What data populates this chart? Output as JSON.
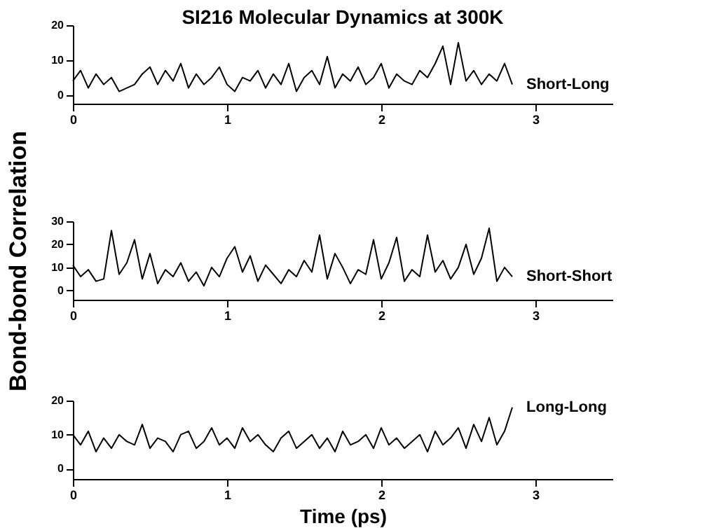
{
  "chart_data": [
    {
      "type": "line",
      "title": "SI216 Molecular Dynamics at 300K",
      "x": [
        0,
        0.05,
        0.1,
        0.15,
        0.2,
        0.25,
        0.3,
        0.35,
        0.4,
        0.45,
        0.5,
        0.55,
        0.6,
        0.65,
        0.7,
        0.75,
        0.8,
        0.85,
        0.9,
        0.95,
        1,
        1.05,
        1.1,
        1.15,
        1.2,
        1.25,
        1.3,
        1.35,
        1.4,
        1.45,
        1.5,
        1.55,
        1.6,
        1.65,
        1.7,
        1.75,
        1.8,
        1.85,
        1.9,
        1.95,
        2,
        2.05,
        2.1,
        2.15,
        2.2,
        2.25,
        2.3,
        2.35,
        2.4,
        2.45,
        2.5,
        2.55,
        2.6,
        2.65,
        2.7,
        2.75,
        2.8,
        2.85
      ],
      "xlim": [
        0,
        3.5
      ],
      "xticks": [
        0,
        1,
        2,
        3
      ],
      "ylim": [
        -2.5,
        20
      ],
      "yticks": [
        0,
        10,
        20
      ],
      "series": [
        {
          "name": "Short-Long",
          "color": "#000000",
          "values": [
            4,
            7,
            2,
            6,
            3,
            5,
            1,
            2,
            3,
            6,
            8,
            3,
            7,
            4,
            9,
            2,
            6,
            3,
            5,
            8,
            3,
            1,
            5,
            4,
            7,
            2,
            6,
            3,
            9,
            1,
            5,
            7,
            3,
            11,
            2,
            6,
            4,
            8,
            3,
            5,
            9,
            2,
            6,
            4,
            3,
            7,
            5,
            9,
            14,
            3,
            15,
            4,
            7,
            3,
            6,
            4,
            9,
            3
          ]
        }
      ]
    },
    {
      "type": "line",
      "ylabel": "Bond-bond Correlation",
      "x": [
        0,
        0.05,
        0.1,
        0.15,
        0.2,
        0.25,
        0.3,
        0.35,
        0.4,
        0.45,
        0.5,
        0.55,
        0.6,
        0.65,
        0.7,
        0.75,
        0.8,
        0.85,
        0.9,
        0.95,
        1,
        1.05,
        1.1,
        1.15,
        1.2,
        1.25,
        1.3,
        1.35,
        1.4,
        1.45,
        1.5,
        1.55,
        1.6,
        1.65,
        1.7,
        1.75,
        1.8,
        1.85,
        1.9,
        1.95,
        2,
        2.05,
        2.1,
        2.15,
        2.2,
        2.25,
        2.3,
        2.35,
        2.4,
        2.45,
        2.5,
        2.55,
        2.6,
        2.65,
        2.7,
        2.75,
        2.8,
        2.85
      ],
      "xlim": [
        0,
        3.5
      ],
      "xticks": [
        0,
        1,
        2,
        3
      ],
      "ylim": [
        -4,
        30
      ],
      "yticks": [
        0,
        10,
        20,
        30
      ],
      "series": [
        {
          "name": "Short-Short",
          "color": "#000000",
          "values": [
            11,
            6,
            9,
            4,
            5,
            26,
            7,
            12,
            22,
            5,
            16,
            3,
            9,
            6,
            12,
            4,
            8,
            2,
            10,
            6,
            14,
            19,
            8,
            15,
            4,
            11,
            7,
            3,
            9,
            6,
            13,
            8,
            24,
            5,
            16,
            10,
            3,
            9,
            7,
            22,
            5,
            12,
            23,
            4,
            9,
            6,
            24,
            8,
            13,
            5,
            10,
            20,
            7,
            14,
            27,
            4,
            10,
            6
          ]
        }
      ]
    },
    {
      "type": "line",
      "xlabel": "Time (ps)",
      "x": [
        0,
        0.05,
        0.1,
        0.15,
        0.2,
        0.25,
        0.3,
        0.35,
        0.4,
        0.45,
        0.5,
        0.55,
        0.6,
        0.65,
        0.7,
        0.75,
        0.8,
        0.85,
        0.9,
        0.95,
        1,
        1.05,
        1.1,
        1.15,
        1.2,
        1.25,
        1.3,
        1.35,
        1.4,
        1.45,
        1.5,
        1.55,
        1.6,
        1.65,
        1.7,
        1.75,
        1.8,
        1.85,
        1.9,
        1.95,
        2,
        2.05,
        2.1,
        2.15,
        2.2,
        2.25,
        2.3,
        2.35,
        2.4,
        2.45,
        2.5,
        2.55,
        2.6,
        2.65,
        2.7,
        2.75,
        2.8,
        2.85
      ],
      "xlim": [
        0,
        3.5
      ],
      "xticks": [
        0,
        1,
        2,
        3
      ],
      "ylim": [
        -3,
        20
      ],
      "yticks": [
        0,
        10,
        20
      ],
      "series": [
        {
          "name": "Long-Long",
          "color": "#000000",
          "values": [
            10,
            7,
            11,
            5,
            9,
            6,
            10,
            8,
            7,
            13,
            6,
            9,
            8,
            5,
            10,
            11,
            6,
            8,
            12,
            7,
            9,
            6,
            12,
            8,
            10,
            7,
            5,
            9,
            11,
            6,
            8,
            10,
            6,
            9,
            5,
            11,
            7,
            8,
            10,
            6,
            12,
            7,
            9,
            6,
            8,
            10,
            5,
            11,
            7,
            9,
            12,
            6,
            13,
            8,
            15,
            7,
            11,
            18
          ]
        }
      ]
    }
  ]
}
